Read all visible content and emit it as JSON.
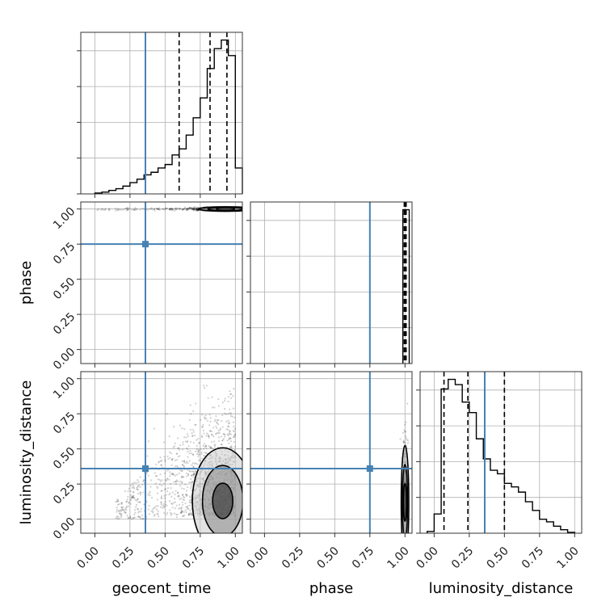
{
  "chart_data": {
    "type": "corner",
    "parameters": [
      "geocent_time",
      "phase",
      "luminosity_distance"
    ],
    "axis_labels": {
      "x": [
        "geocent_time",
        "phase",
        "luminosity_distance"
      ],
      "y": [
        "phase",
        "luminosity_distance"
      ]
    },
    "ranges": [
      [
        -0.1,
        1.05
      ],
      [
        -0.1,
        1.05
      ],
      [
        -0.1,
        1.05
      ]
    ],
    "ticks": [
      0.0,
      0.25,
      0.5,
      0.75,
      1.0
    ],
    "tick_labels": [
      "0.00",
      "0.25",
      "0.50",
      "0.75",
      "1.00"
    ],
    "truths": [
      0.36,
      0.75,
      0.36
    ],
    "truth_color": "#4682b4",
    "grid": true,
    "histograms": [
      {
        "parameter": "geocent_time",
        "quantiles": [
          0.6,
          0.82,
          0.94
        ],
        "bin_edges": [
          0.0,
          0.05,
          0.1,
          0.15,
          0.2,
          0.25,
          0.3,
          0.35,
          0.4,
          0.45,
          0.5,
          0.55,
          0.6,
          0.65,
          0.7,
          0.75,
          0.8,
          0.85,
          0.9,
          0.95,
          1.0,
          1.05
        ],
        "counts": [
          1,
          2,
          4,
          6,
          9,
          13,
          17,
          22,
          25,
          30,
          34,
          45,
          52,
          68,
          88,
          111,
          145,
          168,
          178,
          160,
          30
        ]
      },
      {
        "parameter": "phase",
        "quantiles": [
          0.995,
          1.002,
          1.008
        ],
        "bin_edges": [
          0.985,
          1.03
        ],
        "counts": [
          1
        ]
      },
      {
        "parameter": "luminosity_distance",
        "quantiles": [
          0.07,
          0.24,
          0.5
        ],
        "bin_edges": [
          -0.05,
          0.0,
          0.05,
          0.1,
          0.15,
          0.2,
          0.25,
          0.3,
          0.35,
          0.4,
          0.45,
          0.5,
          0.55,
          0.6,
          0.65,
          0.7,
          0.75,
          0.8,
          0.85,
          0.9,
          0.95,
          1.0
        ],
        "counts": [
          2,
          22,
          165,
          176,
          170,
          150,
          138,
          108,
          85,
          72,
          68,
          57,
          53,
          47,
          36,
          26,
          16,
          13,
          8,
          4,
          1
        ]
      }
    ],
    "density": {
      "phase_vs_geocent_time": {
        "x_center": 0.93,
        "y_center": 1.0,
        "x_spread": 0.07,
        "y_spread": 0.006
      },
      "luminosity_distance_vs_geocent_time": {
        "x_center": 0.91,
        "y_center": 0.13,
        "x_spread": 0.08,
        "y_spread": 0.14
      },
      "luminosity_distance_vs_phase": {
        "x_center": 1.0,
        "y_center": 0.12,
        "x_spread": 0.01,
        "y_spread": 0.15
      }
    }
  }
}
